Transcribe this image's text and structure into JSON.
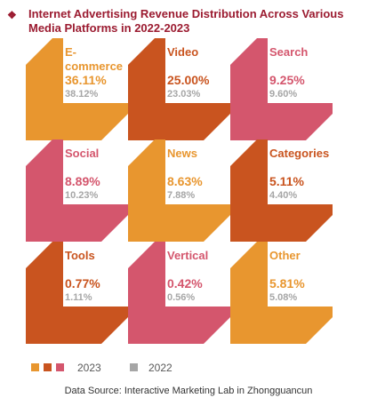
{
  "title": "Internet Advertising Revenue Distribution Across Various Media Platforms in 2022-2023",
  "bullet": "❖",
  "source": "Data Source:  Interactive Marketing Lab in Zhongguancun",
  "colors": {
    "orange": "#e8962f",
    "rust": "#c9541f",
    "pink": "#d4566d",
    "grey": "#a6a6a6",
    "title": "#9b1b30"
  },
  "chart_data": {
    "type": "table",
    "title": "Internet Advertising Revenue Distribution Across Various Media Platforms in 2022-2023",
    "categories": [
      "E-commerce",
      "Video",
      "Search",
      "Social",
      "News",
      "Categories",
      "Tools",
      "Vertical",
      "Other"
    ],
    "series": [
      {
        "name": "2023",
        "values": [
          36.11,
          25.0,
          9.25,
          8.89,
          8.63,
          5.11,
          0.77,
          0.42,
          5.81
        ]
      },
      {
        "name": "2022",
        "values": [
          38.12,
          23.03,
          9.6,
          10.23,
          7.88,
          4.4,
          1.11,
          0.56,
          5.08
        ]
      }
    ],
    "items": [
      {
        "label": "E-\ncommerce",
        "v2023": "36.11%",
        "v2022": "38.12%",
        "color": "#e8962f"
      },
      {
        "label": "Video",
        "v2023": "25.00%",
        "v2022": "23.03%",
        "color": "#c9541f"
      },
      {
        "label": "Search",
        "v2023": "9.25%",
        "v2022": "9.60%",
        "color": "#d4566d"
      },
      {
        "label": "Social",
        "v2023": "8.89%",
        "v2022": "10.23%",
        "color": "#d4566d"
      },
      {
        "label": "News",
        "v2023": "8.63%",
        "v2022": "7.88%",
        "color": "#e8962f"
      },
      {
        "label": "Categories",
        "v2023": "5.11%",
        "v2022": "4.40%",
        "color": "#c9541f"
      },
      {
        "label": "Tools",
        "v2023": "0.77%",
        "v2022": "1.11%",
        "color": "#c9541f"
      },
      {
        "label": "Vertical",
        "v2023": "0.42%",
        "v2022": "0.56%",
        "color": "#d4566d"
      },
      {
        "label": "Other",
        "v2023": "5.81%",
        "v2022": "5.08%",
        "color": "#e8962f"
      }
    ],
    "legend": {
      "position": "bottom-left",
      "entries": [
        {
          "label": "2023",
          "swatches": [
            "#e8962f",
            "#c9541f",
            "#d4566d"
          ]
        },
        {
          "label": "2022",
          "swatches": [
            "#a6a6a6"
          ]
        }
      ]
    }
  }
}
